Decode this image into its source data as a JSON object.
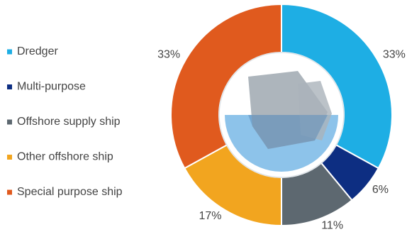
{
  "chart_data": {
    "type": "donut",
    "categories": [
      "Dredger",
      "Multi-purpose",
      "Offshore supply ship",
      "Other offshore ship",
      "Special purpose ship"
    ],
    "values": [
      33,
      6,
      11,
      17,
      33
    ],
    "value_labels": [
      "33%",
      "6%",
      "11%",
      "17%",
      "33%"
    ],
    "colors": [
      "#1eaee4",
      "#0d2e82",
      "#5d6870",
      "#f2a51f",
      "#e05a1e"
    ],
    "legend": "left"
  }
}
